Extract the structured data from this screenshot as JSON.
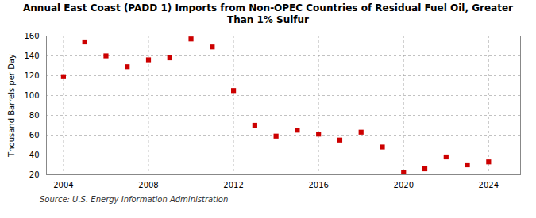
{
  "chart_data": {
    "type": "scatter",
    "title": "Annual East Coast (PADD 1) Imports from Non-OPEC Countries of Residual Fuel Oil, Greater\nThan 1% Sulfur",
    "ylabel": "Thousand Barrels per Day",
    "source": "Source: U.S. Energy Information Administration",
    "x": [
      2004,
      2005,
      2006,
      2007,
      2008,
      2009,
      2010,
      2011,
      2012,
      2013,
      2014,
      2015,
      2016,
      2017,
      2018,
      2019,
      2020,
      2021,
      2022,
      2023,
      2024
    ],
    "values": [
      119,
      154,
      140,
      129,
      136,
      138,
      157,
      149,
      105,
      70,
      59,
      65,
      61,
      55,
      63,
      48,
      22,
      26,
      38,
      30,
      33
    ],
    "color": "#cc0000",
    "marker": "square",
    "xlim": [
      2003.2,
      2025.5
    ],
    "xticks": [
      2004,
      2008,
      2012,
      2016,
      2020,
      2024
    ],
    "ylim": [
      20,
      160
    ],
    "yticks": [
      20,
      40,
      60,
      80,
      100,
      120,
      140,
      160
    ],
    "grid": true
  }
}
